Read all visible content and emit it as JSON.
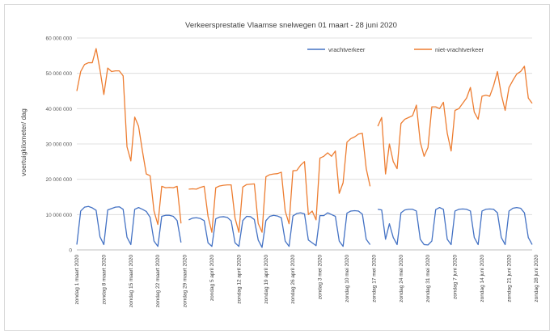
{
  "chart_data": {
    "type": "line",
    "title": "Verkeersprestatie  Vlaamse snelwegen 01 maart - 28 juni 2020",
    "ylabel": "voertuigkilometer/ dag",
    "xlabel": "",
    "ylim": [
      0,
      60000000
    ],
    "y_ticks": [
      {
        "value": 0,
        "label": "0"
      },
      {
        "value": 10000000,
        "label": "10 000 000"
      },
      {
        "value": 20000000,
        "label": "20 000 000"
      },
      {
        "value": 30000000,
        "label": "30 000 000"
      },
      {
        "value": 40000000,
        "label": "40 000 000"
      },
      {
        "value": 50000000,
        "label": "50 000 000"
      },
      {
        "value": 60000000,
        "label": "60 000 000"
      }
    ],
    "grid": true,
    "legend_position": "top-right",
    "x_tick_labels": [
      "zondag 1 maart 2020",
      "zondag 8 maart 2020",
      "zondag 15 maart 2020",
      "zondag 22 maart 2020",
      "zondag 29 maart 2020",
      "zondag 5 april 2020",
      "zondag 12 april 2020",
      "zondag 19 april 2020",
      "zondag 26 april 2020",
      "zondag 3 mei 2020",
      "zondag 10 mei 2020",
      "zondag 17 mei 2020",
      "zondag 24 mei 2020",
      "zondag 31 mei 2020",
      "zondag 7 juni 2020",
      "zondag 14 juni 2020",
      "zondag 21 juni 2020",
      "zondag 28 juni 2020"
    ],
    "x_tick_days": [
      0,
      7,
      14,
      21,
      28,
      35,
      42,
      49,
      56,
      63,
      70,
      77,
      84,
      91,
      98,
      105,
      112,
      119
    ],
    "series": [
      {
        "name": "vrachtverkeer",
        "color": "#4472c4",
        "values": [
          1500000,
          11000000,
          12100000,
          12300000,
          11900000,
          11200000,
          3700000,
          1500000,
          11300000,
          11700000,
          12100000,
          12200000,
          11500000,
          3600000,
          1500000,
          11500000,
          12000000,
          11500000,
          10900000,
          9200000,
          2500000,
          1000000,
          9500000,
          9800000,
          9800000,
          9500000,
          8300000,
          2100000,
          null,
          8500000,
          9000000,
          9100000,
          8900000,
          8300000,
          2000000,
          1000000,
          8800000,
          9300000,
          9400000,
          9200000,
          8200000,
          2000000,
          1000000,
          8300000,
          9500000,
          9400000,
          8600000,
          2800000,
          700000,
          8300000,
          9500000,
          9800000,
          9600000,
          9100000,
          2500000,
          1000000,
          9600000,
          10300000,
          10500000,
          10200000,
          2800000,
          2000000,
          1200000,
          9700000,
          9700000,
          10500000,
          10000000,
          9500000,
          2500000,
          1000000,
          10400000,
          11000000,
          11100000,
          11000000,
          10100000,
          3000000,
          1500000,
          null,
          11500000,
          11300000,
          3000000,
          7400000,
          3500000,
          1500000,
          10500000,
          11300000,
          11500000,
          11500000,
          11000000,
          3000000,
          1500000,
          1400000,
          2500000,
          11400000,
          12000000,
          11500000,
          3000000,
          1500000,
          11000000,
          11500000,
          11600000,
          11500000,
          11000000,
          3500000,
          1500000,
          11000000,
          11500000,
          11600000,
          11500000,
          10500000,
          3500000,
          1500000,
          11000000,
          11800000,
          12000000,
          11800000,
          10500000,
          3500000,
          1500000
        ]
      },
      {
        "name": "niet-vrachtverkeer",
        "color": "#ed7d31",
        "values": [
          45000000,
          50500000,
          52500000,
          53000000,
          53000000,
          57000000,
          51000000,
          44000000,
          51500000,
          50500000,
          50700000,
          50700000,
          49300000,
          29200000,
          25200000,
          37600000,
          35000000,
          28000000,
          21500000,
          21000000,
          11000000,
          7200000,
          18000000,
          17600000,
          17700000,
          17600000,
          18000000,
          7500000,
          null,
          17200000,
          17300000,
          17200000,
          17700000,
          18000000,
          9500000,
          5000000,
          17600000,
          18100000,
          18300000,
          18400000,
          18400000,
          9000000,
          5000000,
          17800000,
          18500000,
          18600000,
          18700000,
          7500000,
          5000000,
          20700000,
          21300000,
          21500000,
          21600000,
          22000000,
          11000000,
          7400000,
          22400000,
          22500000,
          24000000,
          25000000,
          10000000,
          11000000,
          8500000,
          26000000,
          26500000,
          27500000,
          26500000,
          28000000,
          16000000,
          19000000,
          30500000,
          31500000,
          32000000,
          32800000,
          33000000,
          23000000,
          18000000,
          null,
          35000000,
          37500000,
          21500000,
          30000000,
          25000000,
          23000000,
          35800000,
          37000000,
          37500000,
          38000000,
          41000000,
          30500000,
          26500000,
          29000000,
          40500000,
          40500000,
          40000000,
          41800000,
          33000000,
          28000000,
          39500000,
          40000000,
          41500000,
          43000000,
          46000000,
          39000000,
          37000000,
          43500000,
          43800000,
          43500000,
          46500000,
          50500000,
          44000000,
          39500000,
          46000000,
          48000000,
          49800000,
          50500000,
          52000000,
          43000000,
          41500000
        ]
      }
    ]
  }
}
